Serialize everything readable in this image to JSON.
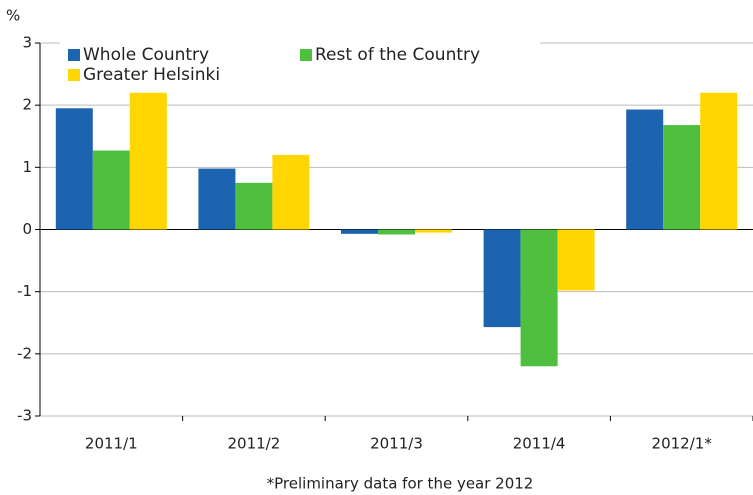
{
  "chart_data": {
    "type": "bar",
    "y_label": "%",
    "footnote": "*Preliminary data for the year 2012",
    "categories": [
      "2011/1",
      "2011/2",
      "2011/3",
      "2011/4",
      "2012/1*"
    ],
    "series": [
      {
        "name": "Whole Country",
        "color": "#1c63b0",
        "values": [
          1.95,
          0.98,
          -0.07,
          -1.57,
          1.93
        ]
      },
      {
        "name": "Rest of the Country",
        "color": "#4fbf3f",
        "values": [
          1.27,
          0.75,
          -0.08,
          -2.2,
          1.68
        ]
      },
      {
        "name": "Greater Helsinki",
        "color": "#ffd600",
        "values": [
          2.2,
          1.2,
          -0.05,
          -0.98,
          2.2
        ]
      }
    ],
    "ylim": [
      -3,
      3
    ],
    "yticks": [
      -3,
      -2,
      -1,
      0,
      1,
      2,
      3
    ],
    "grid": true,
    "legend": "upper left"
  }
}
